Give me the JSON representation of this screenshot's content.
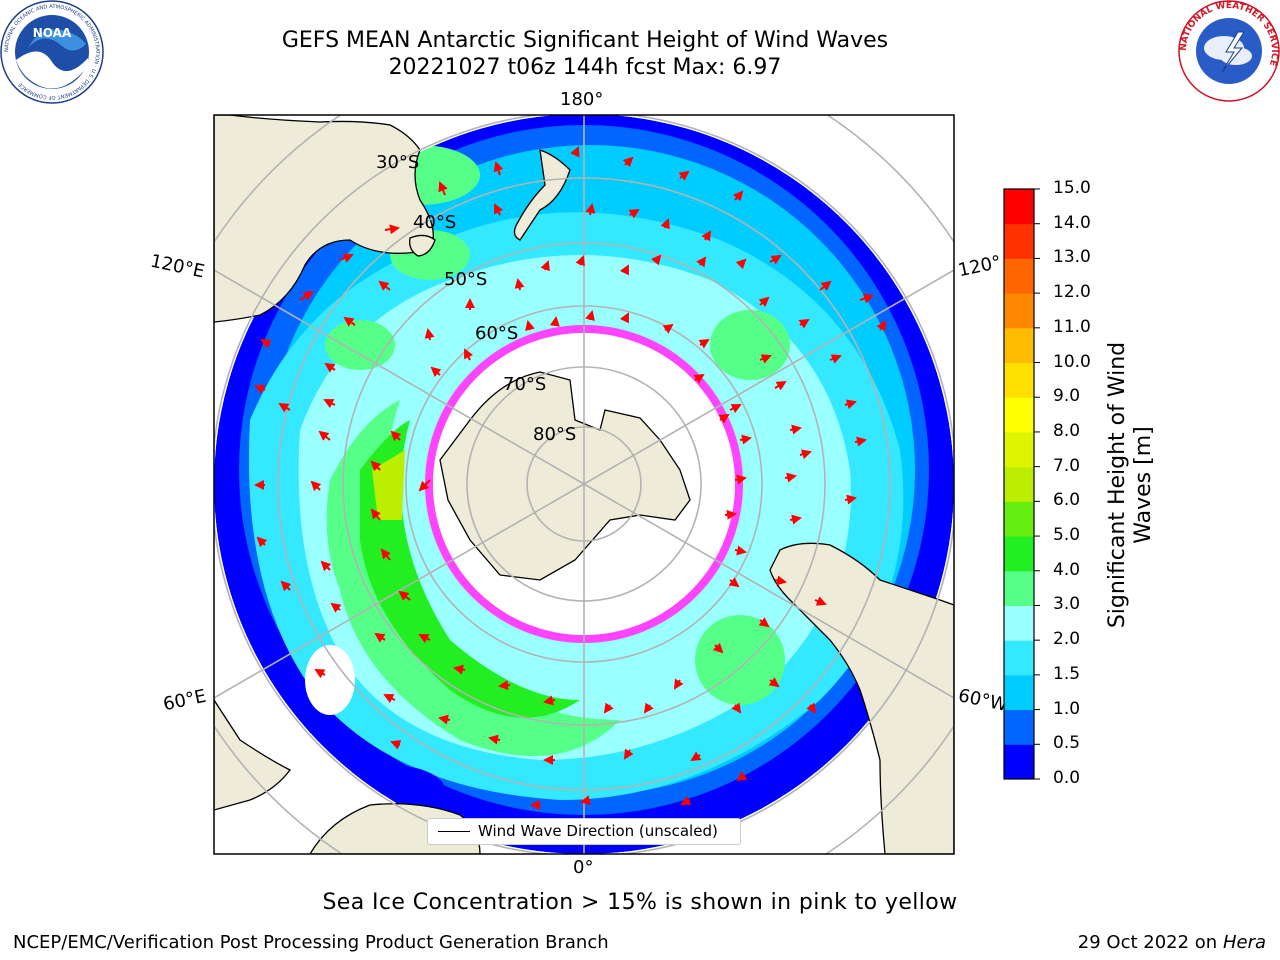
{
  "title": {
    "line1": "GEFS MEAN Antarctic Significant Height of Wind Waves",
    "line2": "20221027 t06z 144h fcst   Max: 6.97"
  },
  "logos": {
    "noaa": {
      "center_text": "NOAA",
      "ring_text": "NATIONAL OCEANIC AND ATMOSPHERIC ADMINISTRATION · U.S. DEPARTMENT OF COMMERCE"
    },
    "nws": {
      "ring_text": "NATIONAL WEATHER SERVICE"
    }
  },
  "map": {
    "projection": "south-polar-stereographic",
    "longitude_labels": [
      "180°",
      "120°E",
      "120°",
      "60°E",
      "60°W",
      "0°"
    ],
    "latitude_labels": [
      "30°S",
      "40°S",
      "50°S",
      "60°S",
      "70°S",
      "80°S"
    ],
    "legend_entry": "Wind Wave Direction (unscaled)",
    "arrow_color": "#ff0000",
    "land_color": "#eeebd8",
    "sea_ice_colors": [
      "#ff44ff",
      "#ff9a2a",
      "#ffe030"
    ]
  },
  "colorbar": {
    "label": "Significant Height of Wind Waves [m]",
    "ticks": [
      "0.0",
      "0.5",
      "1.0",
      "1.5",
      "2.0",
      "3.0",
      "4.0",
      "5.0",
      "6.0",
      "7.0",
      "8.0",
      "9.0",
      "10.0",
      "11.0",
      "12.0",
      "13.0",
      "14.0",
      "15.0"
    ],
    "colors": [
      "#0000ff",
      "#0066ff",
      "#00ccff",
      "#33e8ff",
      "#99ffff",
      "#55ff88",
      "#22ee22",
      "#66ee11",
      "#bbee00",
      "#ddf500",
      "#ffff00",
      "#ffe000",
      "#ffbb00",
      "#ff8800",
      "#ff6600",
      "#ff3300",
      "#ff0000"
    ]
  },
  "note": "Sea Ice Concentration > 15% is shown in pink to yellow",
  "footer": {
    "left": "NCEP/EMC/Verification Post Processing Product Generation Branch",
    "right_date": "29 Oct 2022 on ",
    "right_system": "Hera"
  }
}
